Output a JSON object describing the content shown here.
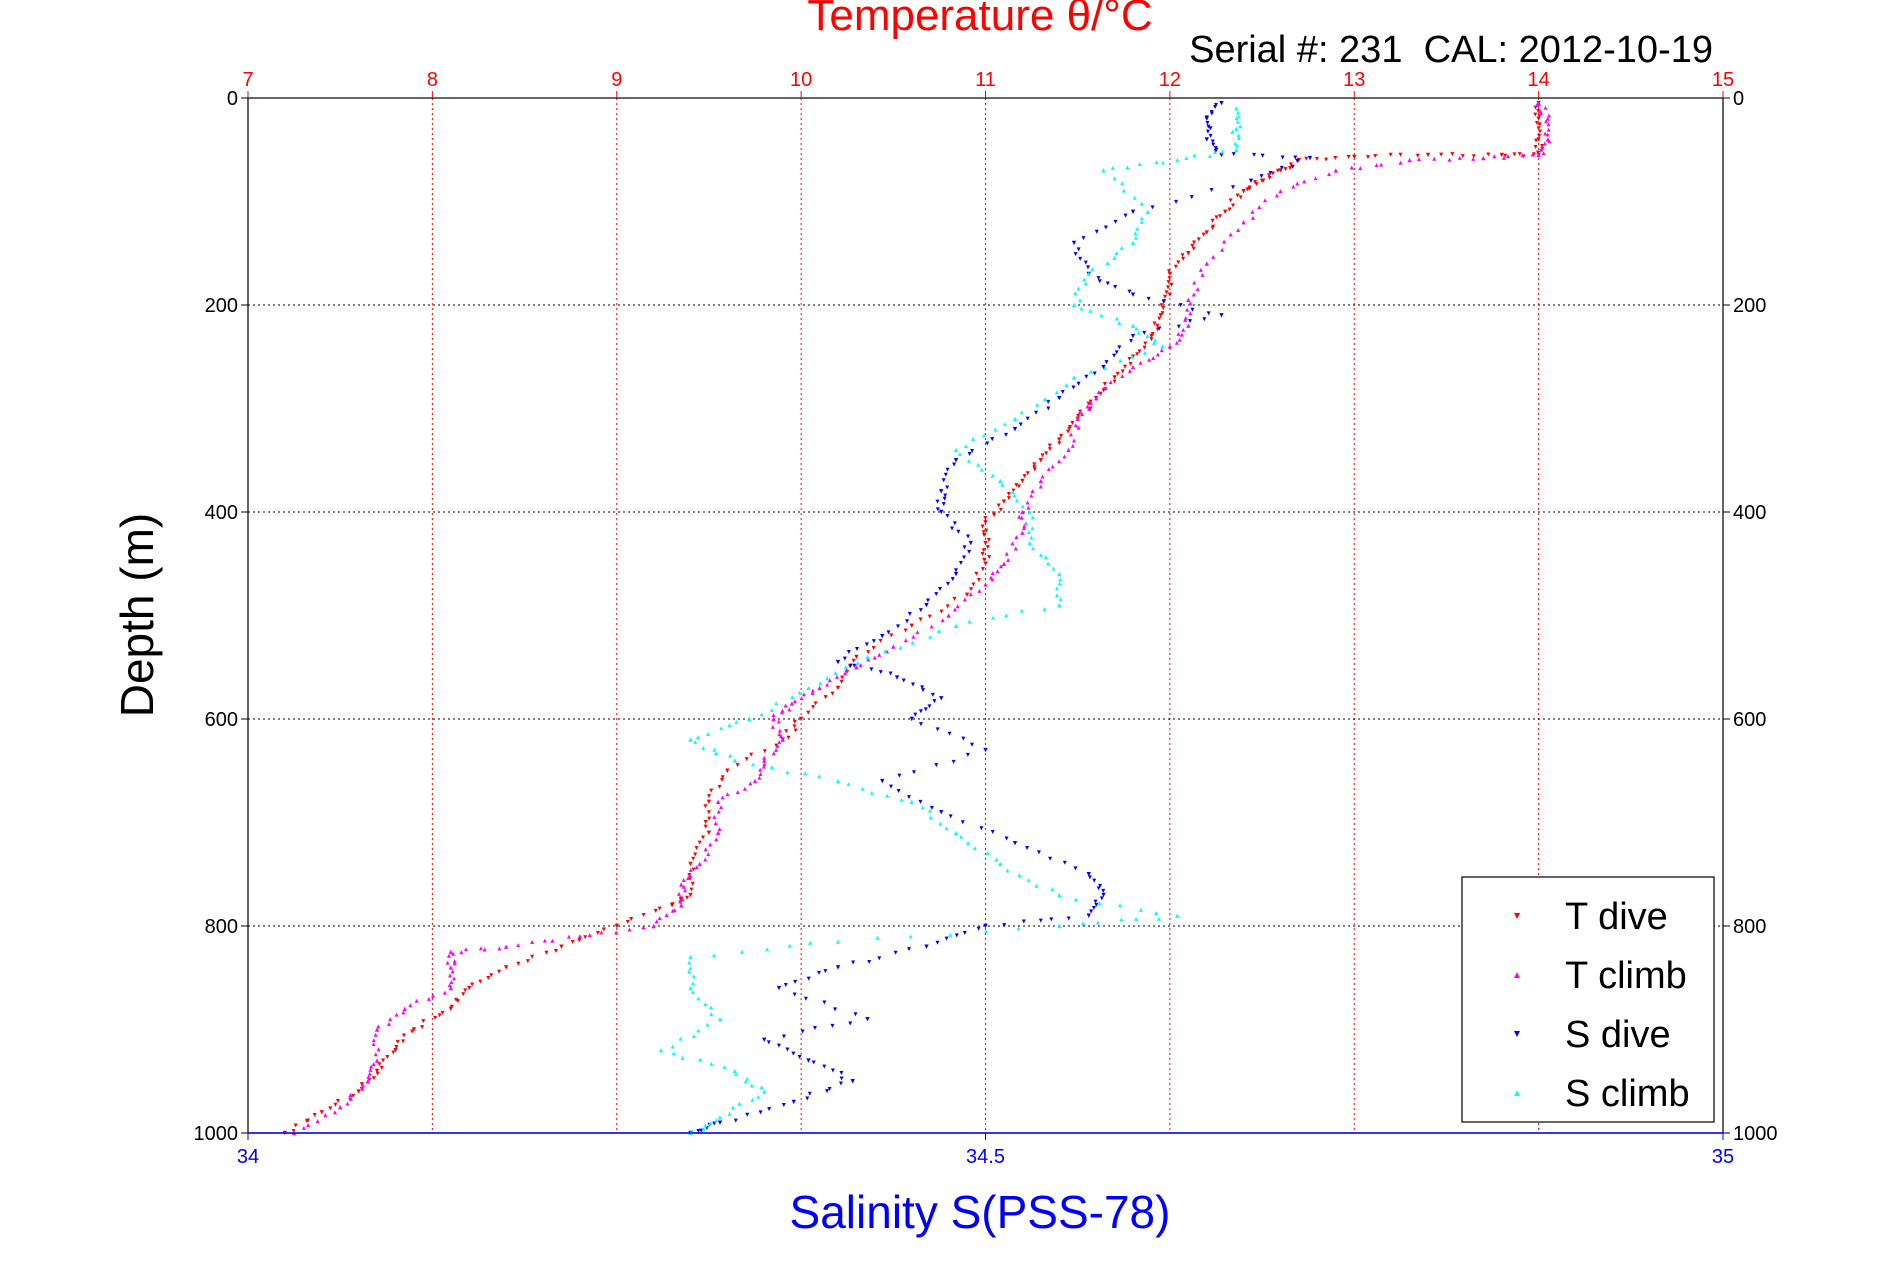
{
  "chart_data": {
    "type": "scatter",
    "title": "Temperature θ/°C",
    "annotation": "Serial #: 231  CAL: 2012-10-19",
    "ylabel": "Depth (m)",
    "xlabel": "Salinity S(PSS-78)",
    "ylim": [
      0,
      1000
    ],
    "y_reversed": true,
    "x_temperature_lim": [
      7,
      15
    ],
    "x_salinity_lim": [
      34,
      35
    ],
    "y_ticks": [
      "0",
      "200",
      "400",
      "600",
      "800",
      "1000"
    ],
    "y_tick_values": [
      0,
      200,
      400,
      600,
      800,
      1000
    ],
    "temperature_ticks": [
      "7",
      "8",
      "9",
      "10",
      "11",
      "12",
      "13",
      "14",
      "15"
    ],
    "temperature_tick_values": [
      7,
      8,
      9,
      10,
      11,
      12,
      13,
      14,
      15
    ],
    "salinity_ticks": [
      "34",
      "34.5",
      "35"
    ],
    "salinity_tick_values": [
      34,
      34.5,
      35
    ],
    "grid": true,
    "legend_position": "bottom-right",
    "colors": {
      "t_dive": "#ff0000",
      "t_climb": "#ff00ff",
      "s_dive": "#0000ff",
      "s_climb": "#00ffff",
      "grid_vertical": "#ff0000",
      "grid_horizontal": "#000000",
      "bottom_axis": "#0000ff"
    },
    "series": [
      {
        "name": "T dive",
        "axis": "temperature",
        "marker": "triangle-down",
        "color": "#ff0000",
        "points": [
          [
            14.0,
            5
          ],
          [
            14.0,
            20
          ],
          [
            14.0,
            40
          ],
          [
            14.0,
            55
          ],
          [
            13.8,
            55
          ],
          [
            13.4,
            55
          ],
          [
            13.0,
            57
          ],
          [
            12.7,
            60
          ],
          [
            12.6,
            70
          ],
          [
            12.5,
            80
          ],
          [
            12.4,
            90
          ],
          [
            12.3,
            110
          ],
          [
            12.2,
            130
          ],
          [
            12.1,
            150
          ],
          [
            12.0,
            170
          ],
          [
            12.0,
            190
          ],
          [
            11.95,
            210
          ],
          [
            11.9,
            230
          ],
          [
            11.8,
            250
          ],
          [
            11.7,
            270
          ],
          [
            11.6,
            290
          ],
          [
            11.5,
            310
          ],
          [
            11.4,
            330
          ],
          [
            11.3,
            350
          ],
          [
            11.2,
            370
          ],
          [
            11.1,
            390
          ],
          [
            11.0,
            410
          ],
          [
            11.0,
            430
          ],
          [
            11.0,
            450
          ],
          [
            10.9,
            480
          ],
          [
            10.6,
            510
          ],
          [
            10.3,
            540
          ],
          [
            10.2,
            570
          ],
          [
            10.0,
            600
          ],
          [
            9.9,
            620
          ],
          [
            9.6,
            650
          ],
          [
            9.5,
            680
          ],
          [
            9.5,
            710
          ],
          [
            9.4,
            740
          ],
          [
            9.4,
            770
          ],
          [
            9.3,
            780
          ],
          [
            9.0,
            800
          ],
          [
            8.7,
            820
          ],
          [
            8.4,
            840
          ],
          [
            8.2,
            860
          ],
          [
            8.1,
            880
          ],
          [
            7.9,
            900
          ],
          [
            7.8,
            920
          ],
          [
            7.7,
            940
          ],
          [
            7.6,
            960
          ],
          [
            7.4,
            980
          ],
          [
            7.2,
            1000
          ]
        ]
      },
      {
        "name": "T climb",
        "axis": "temperature",
        "marker": "triangle-up",
        "color": "#ff00ff",
        "points": [
          [
            7.25,
            1000
          ],
          [
            7.5,
            975
          ],
          [
            7.65,
            950
          ],
          [
            7.7,
            930
          ],
          [
            7.7,
            900
          ],
          [
            7.85,
            880
          ],
          [
            8.1,
            860
          ],
          [
            8.1,
            840
          ],
          [
            8.1,
            825
          ],
          [
            8.4,
            820
          ],
          [
            8.8,
            810
          ],
          [
            9.2,
            800
          ],
          [
            9.35,
            780
          ],
          [
            9.35,
            760
          ],
          [
            9.45,
            740
          ],
          [
            9.55,
            710
          ],
          [
            9.55,
            680
          ],
          [
            9.75,
            660
          ],
          [
            9.8,
            640
          ],
          [
            9.9,
            620
          ],
          [
            9.85,
            600
          ],
          [
            9.95,
            585
          ],
          [
            10.1,
            570
          ],
          [
            10.3,
            550
          ],
          [
            10.5,
            530
          ],
          [
            10.8,
            500
          ],
          [
            11.0,
            470
          ],
          [
            11.1,
            450
          ],
          [
            11.2,
            420
          ],
          [
            11.2,
            400
          ],
          [
            11.3,
            370
          ],
          [
            11.45,
            340
          ],
          [
            11.5,
            310
          ],
          [
            11.6,
            290
          ],
          [
            11.8,
            260
          ],
          [
            12.0,
            240
          ],
          [
            12.1,
            220
          ],
          [
            12.1,
            195
          ],
          [
            12.2,
            160
          ],
          [
            12.4,
            120
          ],
          [
            12.6,
            90
          ],
          [
            12.9,
            70
          ],
          [
            13.3,
            60
          ],
          [
            13.7,
            58
          ],
          [
            14.0,
            55
          ],
          [
            14.05,
            40
          ],
          [
            14.05,
            20
          ],
          [
            14.0,
            5
          ]
        ]
      },
      {
        "name": "S dive",
        "axis": "salinity",
        "marker": "triangle-down",
        "color": "#0000ff",
        "points": [
          [
            34.66,
            5
          ],
          [
            34.65,
            20
          ],
          [
            34.65,
            40
          ],
          [
            34.66,
            55
          ],
          [
            34.72,
            58
          ],
          [
            34.68,
            80
          ],
          [
            34.6,
            110
          ],
          [
            34.56,
            140
          ],
          [
            34.57,
            170
          ],
          [
            34.6,
            190
          ],
          [
            34.66,
            210
          ],
          [
            34.6,
            230
          ],
          [
            34.58,
            260
          ],
          [
            34.55,
            290
          ],
          [
            34.52,
            320
          ],
          [
            34.48,
            350
          ],
          [
            34.47,
            380
          ],
          [
            34.47,
            400
          ],
          [
            34.49,
            430
          ],
          [
            34.48,
            460
          ],
          [
            34.46,
            490
          ],
          [
            34.43,
            520
          ],
          [
            34.4,
            545
          ],
          [
            34.44,
            560
          ],
          [
            34.47,
            580
          ],
          [
            34.45,
            600
          ],
          [
            34.5,
            630
          ],
          [
            34.43,
            660
          ],
          [
            34.47,
            690
          ],
          [
            34.52,
            720
          ],
          [
            34.57,
            750
          ],
          [
            34.58,
            770
          ],
          [
            34.57,
            790
          ],
          [
            34.5,
            800
          ],
          [
            34.46,
            820
          ],
          [
            34.4,
            840
          ],
          [
            34.36,
            860
          ],
          [
            34.42,
            890
          ],
          [
            34.35,
            910
          ],
          [
            34.38,
            930
          ],
          [
            34.41,
            950
          ],
          [
            34.37,
            970
          ],
          [
            34.32,
            990
          ],
          [
            34.3,
            1000
          ]
        ]
      },
      {
        "name": "S climb",
        "axis": "salinity",
        "marker": "triangle-up",
        "color": "#00ffff",
        "points": [
          [
            34.3,
            1000
          ],
          [
            34.32,
            985
          ],
          [
            34.35,
            960
          ],
          [
            34.33,
            940
          ],
          [
            34.28,
            920
          ],
          [
            34.32,
            890
          ],
          [
            34.3,
            860
          ],
          [
            34.3,
            830
          ],
          [
            34.4,
            815
          ],
          [
            34.55,
            800
          ],
          [
            34.63,
            790
          ],
          [
            34.55,
            770
          ],
          [
            34.51,
            740
          ],
          [
            34.48,
            710
          ],
          [
            34.45,
            680
          ],
          [
            34.4,
            660
          ],
          [
            34.33,
            640
          ],
          [
            34.3,
            620
          ],
          [
            34.34,
            600
          ],
          [
            34.38,
            570
          ],
          [
            34.42,
            540
          ],
          [
            34.48,
            510
          ],
          [
            34.55,
            490
          ],
          [
            34.55,
            460
          ],
          [
            34.53,
            430
          ],
          [
            34.53,
            400
          ],
          [
            34.51,
            370
          ],
          [
            34.48,
            340
          ],
          [
            34.52,
            310
          ],
          [
            34.56,
            270
          ],
          [
            34.62,
            240
          ],
          [
            34.6,
            220
          ],
          [
            34.56,
            200
          ],
          [
            34.57,
            170
          ],
          [
            34.6,
            140
          ],
          [
            34.61,
            110
          ],
          [
            34.58,
            70
          ],
          [
            34.63,
            60
          ],
          [
            34.67,
            50
          ],
          [
            34.67,
            30
          ],
          [
            34.67,
            10
          ]
        ]
      }
    ]
  }
}
